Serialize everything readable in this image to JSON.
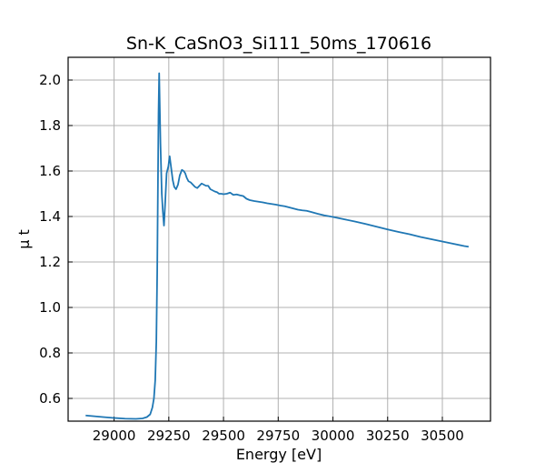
{
  "chart_data": {
    "type": "line",
    "title": "Sn-K_CaSnO3_Si111_50ms_170616",
    "xlabel": "Energy [eV]",
    "ylabel": "μ t",
    "xlim": [
      28790,
      30720
    ],
    "ylim": [
      0.5,
      2.1
    ],
    "xticks": [
      29000,
      29250,
      29500,
      29750,
      30000,
      30250,
      30500
    ],
    "yticks": [
      0.6,
      0.8,
      1.0,
      1.2,
      1.4,
      1.6,
      1.8,
      2.0
    ],
    "xtick_labels": [
      "29000",
      "29250",
      "29500",
      "29750",
      "30000",
      "30250",
      "30500"
    ],
    "ytick_labels": [
      "0.6",
      "0.8",
      "1.0",
      "1.2",
      "1.4",
      "1.6",
      "1.8",
      "2.0"
    ],
    "grid": true,
    "tick_direction": "in",
    "series": [
      {
        "color": "#1f77b4",
        "x": [
          28870,
          28950,
          29000,
          29050,
          29100,
          29130,
          29150,
          29165,
          29175,
          29182,
          29188,
          29193,
          29197,
          29200,
          29203,
          29206,
          29212,
          29218,
          29223,
          29228,
          29233,
          29240,
          29248,
          29254,
          29260,
          29268,
          29275,
          29283,
          29292,
          29300,
          29310,
          29318,
          29325,
          29332,
          29340,
          29350,
          29360,
          29370,
          29380,
          29390,
          29400,
          29410,
          29420,
          29430,
          29440,
          29450,
          29460,
          29470,
          29480,
          29490,
          29500,
          29515,
          29530,
          29545,
          29560,
          29575,
          29590,
          29605,
          29620,
          29640,
          29660,
          29680,
          29700,
          29720,
          29740,
          29760,
          29780,
          29800,
          29820,
          29840,
          29860,
          29880,
          29900,
          29930,
          29960,
          30000,
          30050,
          30100,
          30150,
          30200,
          30250,
          30300,
          30350,
          30400,
          30450,
          30500,
          30550,
          30600,
          30620
        ],
        "y": [
          0.525,
          0.518,
          0.514,
          0.511,
          0.51,
          0.512,
          0.518,
          0.53,
          0.56,
          0.6,
          0.68,
          0.85,
          1.15,
          1.5,
          1.85,
          2.03,
          1.72,
          1.5,
          1.42,
          1.36,
          1.45,
          1.59,
          1.62,
          1.665,
          1.62,
          1.56,
          1.53,
          1.52,
          1.54,
          1.58,
          1.605,
          1.6,
          1.59,
          1.57,
          1.555,
          1.55,
          1.54,
          1.53,
          1.525,
          1.535,
          1.545,
          1.54,
          1.535,
          1.535,
          1.52,
          1.515,
          1.51,
          1.507,
          1.5,
          1.5,
          1.498,
          1.5,
          1.505,
          1.495,
          1.497,
          1.493,
          1.49,
          1.478,
          1.472,
          1.468,
          1.465,
          1.462,
          1.458,
          1.455,
          1.452,
          1.448,
          1.445,
          1.44,
          1.435,
          1.43,
          1.427,
          1.425,
          1.42,
          1.412,
          1.405,
          1.398,
          1.388,
          1.378,
          1.367,
          1.355,
          1.343,
          1.332,
          1.322,
          1.31,
          1.3,
          1.29,
          1.28,
          1.27,
          1.267
        ]
      }
    ]
  }
}
